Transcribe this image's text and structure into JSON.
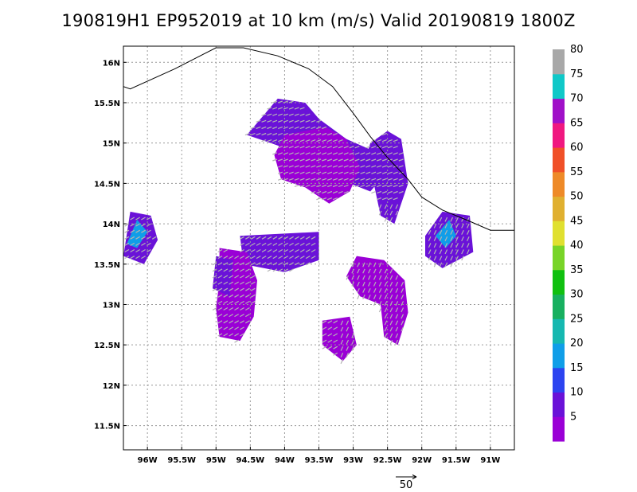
{
  "title": "190819H1  EP952019  at 10 km  (m/s)  Valid 20190819  1800Z",
  "chart_data": {
    "type": "heatmap",
    "title": "190819H1  EP952019  at 10 km  (m/s)  Valid 20190819  1800Z",
    "xlabel": "",
    "ylabel": "",
    "xlim": [
      -96.35,
      -90.65
    ],
    "ylim": [
      11.2,
      16.2
    ],
    "x_ticks": [
      {
        "value": -96.0,
        "label": "96W"
      },
      {
        "value": -95.5,
        "label": "95.5W"
      },
      {
        "value": -95.0,
        "label": "95W"
      },
      {
        "value": -94.5,
        "label": "94.5W"
      },
      {
        "value": -94.0,
        "label": "94W"
      },
      {
        "value": -93.5,
        "label": "93.5W"
      },
      {
        "value": -93.0,
        "label": "93W"
      },
      {
        "value": -92.5,
        "label": "92.5W"
      },
      {
        "value": -92.0,
        "label": "92W"
      },
      {
        "value": -91.5,
        "label": "91.5W"
      },
      {
        "value": -91.0,
        "label": "91W"
      }
    ],
    "y_ticks": [
      {
        "value": 11.5,
        "label": "11.5N"
      },
      {
        "value": 12.0,
        "label": "12N"
      },
      {
        "value": 12.5,
        "label": "12.5N"
      },
      {
        "value": 13.0,
        "label": "13N"
      },
      {
        "value": 13.5,
        "label": "13.5N"
      },
      {
        "value": 14.0,
        "label": "14N"
      },
      {
        "value": 14.5,
        "label": "14.5N"
      },
      {
        "value": 15.0,
        "label": "15N"
      },
      {
        "value": 15.5,
        "label": "15.5N"
      },
      {
        "value": 16.0,
        "label": "16N"
      }
    ],
    "grid": true,
    "colorbar": {
      "labels": [
        "5",
        "10",
        "15",
        "20",
        "25",
        "30",
        "35",
        "40",
        "45",
        "50",
        "55",
        "60",
        "65",
        "70",
        "75",
        "80"
      ],
      "colors": [
        "#9a00d6",
        "#6a12d8",
        "#2c44f0",
        "#109ee8",
        "#16b8b0",
        "#18b060",
        "#10c010",
        "#78d428",
        "#e0e030",
        "#e0b030",
        "#ee8a28",
        "#f05028",
        "#f01880",
        "#a010c8",
        "#10c8c8",
        "#a8a8a8"
      ]
    },
    "reference_vector": {
      "label": "50",
      "magnitude": 50
    },
    "coastline": [
      [
        -96.35,
        15.7
      ],
      [
        -96.25,
        15.67
      ],
      [
        -95.6,
        15.92
      ],
      [
        -95.0,
        16.18
      ],
      [
        -94.6,
        16.18
      ],
      [
        -94.1,
        16.08
      ],
      [
        -93.65,
        15.92
      ],
      [
        -93.3,
        15.7
      ],
      [
        -93.0,
        15.37
      ],
      [
        -92.75,
        15.08
      ],
      [
        -92.5,
        14.82
      ],
      [
        -92.2,
        14.55
      ],
      [
        -92.0,
        14.33
      ],
      [
        -91.7,
        14.17
      ],
      [
        -91.3,
        14.03
      ],
      [
        -91.0,
        13.92
      ],
      [
        -90.65,
        13.92
      ]
    ],
    "wind_regions": [
      {
        "speed": 8,
        "polygon": [
          [
            -94.55,
            15.1
          ],
          [
            -94.1,
            15.55
          ],
          [
            -93.7,
            15.5
          ],
          [
            -93.5,
            15.3
          ],
          [
            -93.1,
            15.05
          ],
          [
            -92.7,
            14.9
          ],
          [
            -92.5,
            14.65
          ],
          [
            -92.75,
            14.4
          ],
          [
            -93.2,
            14.55
          ],
          [
            -93.7,
            14.85
          ],
          [
            -94.2,
            15.0
          ]
        ]
      },
      {
        "speed": 4,
        "polygon": [
          [
            -94.0,
            15.1
          ],
          [
            -93.4,
            15.2
          ],
          [
            -93.1,
            15.05
          ],
          [
            -92.9,
            14.7
          ],
          [
            -93.05,
            14.4
          ],
          [
            -93.35,
            14.25
          ],
          [
            -93.7,
            14.45
          ],
          [
            -94.05,
            14.55
          ],
          [
            -94.15,
            14.85
          ]
        ]
      },
      {
        "speed": 8,
        "polygon": [
          [
            -92.75,
            15.0
          ],
          [
            -92.5,
            15.15
          ],
          [
            -92.3,
            15.05
          ],
          [
            -92.2,
            14.5
          ],
          [
            -92.4,
            14.0
          ],
          [
            -92.6,
            14.1
          ],
          [
            -92.7,
            14.5
          ],
          [
            -92.9,
            14.6
          ]
        ]
      },
      {
        "speed": 8,
        "polygon": [
          [
            -96.35,
            13.6
          ],
          [
            -96.25,
            14.15
          ],
          [
            -95.95,
            14.1
          ],
          [
            -95.85,
            13.8
          ],
          [
            -96.05,
            13.5
          ]
        ]
      },
      {
        "speed": 15,
        "polygon": [
          [
            -96.3,
            13.75
          ],
          [
            -96.15,
            14.05
          ],
          [
            -96.0,
            13.9
          ],
          [
            -96.15,
            13.7
          ]
        ]
      },
      {
        "speed": 8,
        "polygon": [
          [
            -94.65,
            13.85
          ],
          [
            -93.5,
            13.9
          ],
          [
            -93.5,
            13.55
          ],
          [
            -94.0,
            13.4
          ],
          [
            -94.6,
            13.5
          ]
        ]
      },
      {
        "speed": 4,
        "polygon": [
          [
            -94.95,
            13.7
          ],
          [
            -94.55,
            13.65
          ],
          [
            -94.4,
            13.3
          ],
          [
            -94.45,
            12.85
          ],
          [
            -94.65,
            12.55
          ],
          [
            -94.95,
            12.6
          ],
          [
            -95.0,
            12.95
          ],
          [
            -94.95,
            13.3
          ]
        ]
      },
      {
        "speed": 8,
        "polygon": [
          [
            -95.0,
            13.6
          ],
          [
            -94.75,
            13.55
          ],
          [
            -94.8,
            13.1
          ],
          [
            -95.05,
            13.2
          ]
        ]
      },
      {
        "speed": 4,
        "polygon": [
          [
            -93.1,
            13.35
          ],
          [
            -92.95,
            13.6
          ],
          [
            -92.55,
            13.55
          ],
          [
            -92.25,
            13.3
          ],
          [
            -92.2,
            12.9
          ],
          [
            -92.35,
            12.5
          ],
          [
            -92.55,
            12.6
          ],
          [
            -92.6,
            13.0
          ],
          [
            -92.9,
            13.1
          ]
        ]
      },
      {
        "speed": 4,
        "polygon": [
          [
            -93.45,
            12.8
          ],
          [
            -93.05,
            12.85
          ],
          [
            -92.95,
            12.5
          ],
          [
            -93.15,
            12.3
          ],
          [
            -93.45,
            12.5
          ]
        ]
      },
      {
        "speed": 8,
        "polygon": [
          [
            -91.95,
            13.85
          ],
          [
            -91.7,
            14.15
          ],
          [
            -91.3,
            14.1
          ],
          [
            -91.25,
            13.65
          ],
          [
            -91.7,
            13.45
          ],
          [
            -91.95,
            13.6
          ]
        ]
      },
      {
        "speed": 15,
        "polygon": [
          [
            -91.8,
            13.85
          ],
          [
            -91.6,
            14.05
          ],
          [
            -91.5,
            13.85
          ],
          [
            -91.65,
            13.7
          ]
        ]
      }
    ]
  }
}
